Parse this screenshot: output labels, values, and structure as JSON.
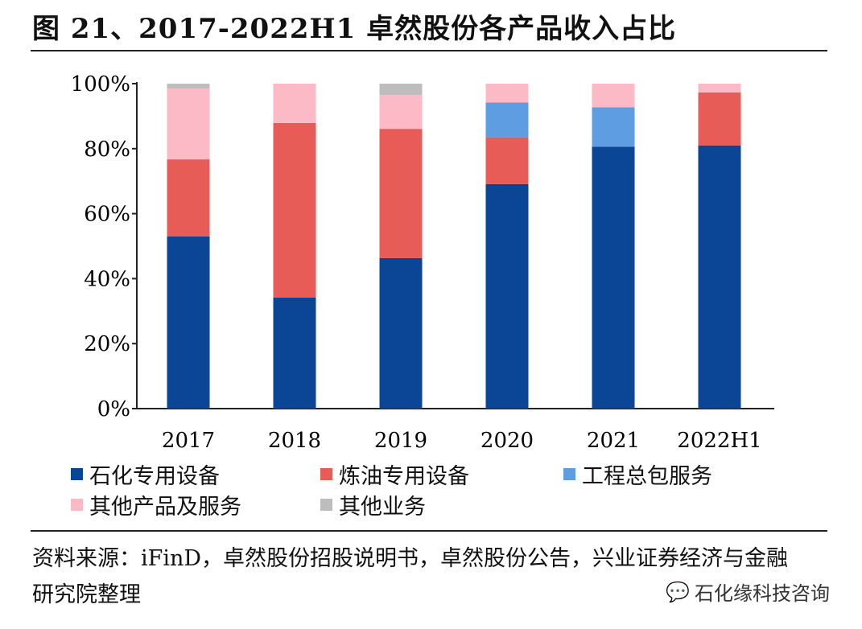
{
  "title": "图 21、2017-2022H1 卓然股份各产品收入占比",
  "chart_data": {
    "type": "bar",
    "stacked": true,
    "categories": [
      "2017",
      "2018",
      "2019",
      "2020",
      "2021",
      "2022H1"
    ],
    "ylim": [
      0,
      100
    ],
    "yticks": [
      "0%",
      "20%",
      "40%",
      "60%",
      "80%",
      "100%"
    ],
    "grid": false,
    "legend_position": "bottom",
    "series": [
      {
        "name": "石化专用设备",
        "color": "#0b4596",
        "values": [
          53.0,
          34.2,
          46.3,
          69.1,
          80.6,
          81.0
        ]
      },
      {
        "name": "炼油专用设备",
        "color": "#e85c58",
        "values": [
          23.7,
          53.7,
          39.8,
          14.4,
          0,
          16.3
        ]
      },
      {
        "name": "工程总包服务",
        "color": "#5e9de2",
        "values": [
          0,
          0,
          0,
          10.7,
          12.1,
          0
        ]
      },
      {
        "name": "其他产品及服务",
        "color": "#fbbac5",
        "values": [
          21.8,
          12.1,
          10.4,
          5.8,
          7.3,
          2.7
        ]
      },
      {
        "name": "其他业务",
        "color": "#bdbdbd",
        "values": [
          1.5,
          0,
          3.5,
          0,
          0,
          0
        ]
      }
    ]
  },
  "source": "资料来源：iFinD，卓然股份招股说明书，卓然股份公告，兴业证券经济与金融研究院整理",
  "watermark": "石化缘科技咨询"
}
